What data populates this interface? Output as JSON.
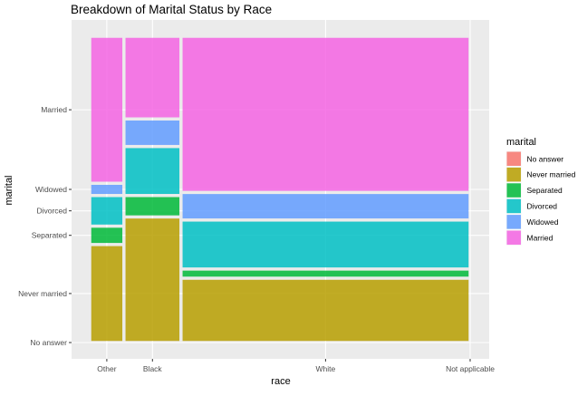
{
  "chart_data": {
    "type": "mosaic",
    "title": "Breakdown of Marital Status by Race",
    "xlabel": "race",
    "ylabel": "marital",
    "x_ticks": [
      "Other",
      "Black",
      "White",
      "Not applicable"
    ],
    "y_ticks": [
      "No answer",
      "Never married",
      "Separated",
      "Divorced",
      "Widowed",
      "Married"
    ],
    "legend": {
      "title": "marital",
      "position": "right",
      "entries": [
        {
          "label": "No answer",
          "color": "#F8766D"
        },
        {
          "label": "Never married",
          "color": "#B79F00"
        },
        {
          "label": "Separated",
          "color": "#00BA38"
        },
        {
          "label": "Divorced",
          "color": "#00BFC4"
        },
        {
          "label": "Widowed",
          "color": "#619CFF"
        },
        {
          "label": "Married",
          "color": "#F564E3"
        }
      ]
    },
    "columns": [
      {
        "race": "Other",
        "share": 0.09,
        "proportions": {
          "No answer": 0.0,
          "Never married": 0.32,
          "Separated": 0.06,
          "Divorced": 0.1,
          "Widowed": 0.04,
          "Married": 0.48
        }
      },
      {
        "race": "Black",
        "share": 0.15,
        "proportions": {
          "No answer": 0.0,
          "Never married": 0.41,
          "Separated": 0.07,
          "Divorced": 0.16,
          "Widowed": 0.09,
          "Married": 0.27
        }
      },
      {
        "race": "White",
        "share": 0.76,
        "proportions": {
          "No answer": 0.0,
          "Never married": 0.21,
          "Separated": 0.03,
          "Divorced": 0.16,
          "Widowed": 0.09,
          "Married": 0.51
        }
      }
    ],
    "grid": true
  }
}
